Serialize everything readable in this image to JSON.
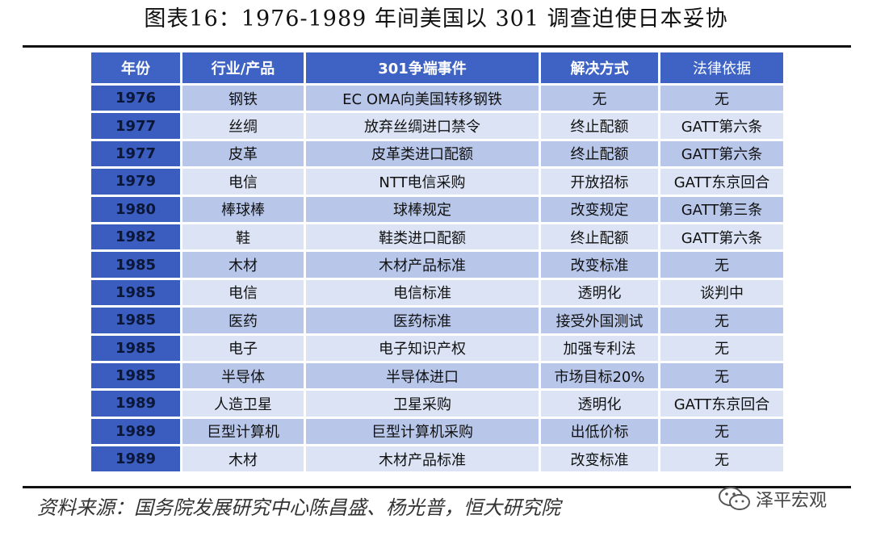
{
  "title": "图表16：1976-1989 年间美国以 301 调查迫使日本妥协",
  "table": {
    "headers": [
      "年份",
      "行业/产品",
      "301争端事件",
      "解决方式",
      "法律依据"
    ],
    "rows": [
      [
        "1976",
        "钢铁",
        "EC OMA向美国转移钢铁",
        "无",
        "无"
      ],
      [
        "1977",
        "丝绸",
        "放弃丝绸进口禁令",
        "终止配额",
        "GATT第六条"
      ],
      [
        "1977",
        "皮革",
        "皮革类进口配额",
        "终止配额",
        "GATT第六条"
      ],
      [
        "1979",
        "电信",
        "NTT电信采购",
        "开放招标",
        "GATT东京回合"
      ],
      [
        "1980",
        "棒球棒",
        "球棒规定",
        "改变规定",
        "GATT第三条"
      ],
      [
        "1982",
        "鞋",
        "鞋类进口配额",
        "终止配额",
        "GATT第六条"
      ],
      [
        "1985",
        "木材",
        "木材产品标准",
        "改变标准",
        "无"
      ],
      [
        "1985",
        "电信",
        "电信标准",
        "透明化",
        "谈判中"
      ],
      [
        "1985",
        "医药",
        "医药标准",
        "接受外国测试",
        "无"
      ],
      [
        "1985",
        "电子",
        "电子知识产权",
        "加强专利法",
        "无"
      ],
      [
        "1985",
        "半导体",
        "半导体进口",
        "市场目标20%",
        "无"
      ],
      [
        "1989",
        "人造卫星",
        "卫星采购",
        "透明化",
        "GATT东京回合"
      ],
      [
        "1989",
        "巨型计算机",
        "巨型计算机采购",
        "出低价标",
        "无"
      ],
      [
        "1989",
        "木材",
        "木材产品标准",
        "改变标准",
        "无"
      ]
    ]
  },
  "source": "资料来源：国务院发展研究中心陈昌盛、杨光普，恒大研究院",
  "logo": {
    "icon": "wechat-icon",
    "text": "泽平宏观"
  },
  "colors": {
    "header": "#3f63c4",
    "year_cell": "#3a5dbf",
    "row_dark": "#b7c6e9",
    "row_light": "#dbe3f4"
  }
}
